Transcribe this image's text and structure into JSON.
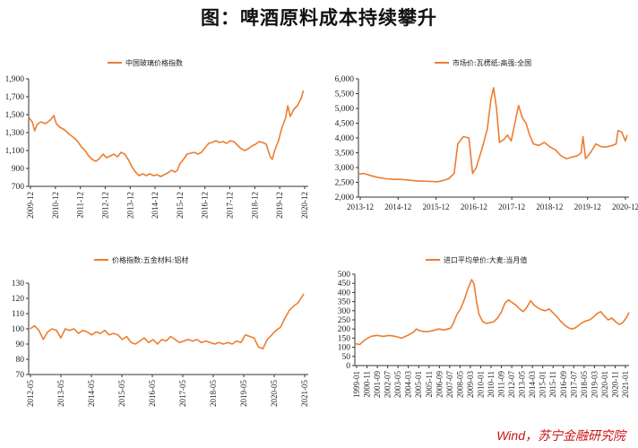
{
  "title": "图：啤酒原料成本持续攀升",
  "source": "Wind，苏宁金融研究院",
  "colors": {
    "series": "#ED7D31"
  },
  "chart_data": [
    {
      "type": "line",
      "legend": "中国玻璃价格指数",
      "legend_position": "top",
      "grid": false,
      "x_ticks": [
        "2009-12",
        "2010-12",
        "2011-12",
        "2012-12",
        "2013-12",
        "2014-12",
        "2015-12",
        "2016-12",
        "2017-12",
        "2018-12",
        "2019-12",
        "2020-12"
      ],
      "x_range": [
        2009.8,
        2021.45
      ],
      "y_ticks": [
        "700",
        "900",
        "1,100",
        "1,300",
        "1,500",
        "1,700",
        "1,900"
      ],
      "ylim": [
        700,
        1900
      ],
      "x_rotate": true,
      "points": [
        [
          2009.8,
          1470
        ],
        [
          2009.95,
          1420
        ],
        [
          2010.05,
          1320
        ],
        [
          2010.15,
          1390
        ],
        [
          2010.3,
          1420
        ],
        [
          2010.5,
          1400
        ],
        [
          2010.7,
          1440
        ],
        [
          2010.85,
          1490
        ],
        [
          2010.95,
          1400
        ],
        [
          2011.1,
          1360
        ],
        [
          2011.3,
          1330
        ],
        [
          2011.5,
          1280
        ],
        [
          2011.7,
          1240
        ],
        [
          2011.85,
          1200
        ],
        [
          2012.0,
          1140
        ],
        [
          2012.15,
          1100
        ],
        [
          2012.3,
          1040
        ],
        [
          2012.45,
          1000
        ],
        [
          2012.6,
          980
        ],
        [
          2012.75,
          1010
        ],
        [
          2012.9,
          1060
        ],
        [
          2013.05,
          1020
        ],
        [
          2013.2,
          1040
        ],
        [
          2013.35,
          1060
        ],
        [
          2013.5,
          1030
        ],
        [
          2013.65,
          1080
        ],
        [
          2013.8,
          1060
        ],
        [
          2013.95,
          1000
        ],
        [
          2014.1,
          920
        ],
        [
          2014.25,
          860
        ],
        [
          2014.4,
          820
        ],
        [
          2014.55,
          840
        ],
        [
          2014.7,
          820
        ],
        [
          2014.85,
          840
        ],
        [
          2015.0,
          820
        ],
        [
          2015.15,
          830
        ],
        [
          2015.3,
          810
        ],
        [
          2015.45,
          830
        ],
        [
          2015.6,
          850
        ],
        [
          2015.75,
          880
        ],
        [
          2015.9,
          860
        ],
        [
          2016.0,
          880
        ],
        [
          2016.1,
          950
        ],
        [
          2016.25,
          1000
        ],
        [
          2016.4,
          1060
        ],
        [
          2016.55,
          1070
        ],
        [
          2016.7,
          1080
        ],
        [
          2016.85,
          1060
        ],
        [
          2017.0,
          1080
        ],
        [
          2017.15,
          1130
        ],
        [
          2017.3,
          1180
        ],
        [
          2017.45,
          1190
        ],
        [
          2017.6,
          1210
        ],
        [
          2017.75,
          1190
        ],
        [
          2017.9,
          1200
        ],
        [
          2018.05,
          1180
        ],
        [
          2018.2,
          1210
        ],
        [
          2018.35,
          1200
        ],
        [
          2018.5,
          1160
        ],
        [
          2018.65,
          1120
        ],
        [
          2018.8,
          1100
        ],
        [
          2018.95,
          1120
        ],
        [
          2019.1,
          1150
        ],
        [
          2019.25,
          1170
        ],
        [
          2019.4,
          1200
        ],
        [
          2019.55,
          1190
        ],
        [
          2019.7,
          1170
        ],
        [
          2019.85,
          1040
        ],
        [
          2019.95,
          1000
        ],
        [
          2020.05,
          1100
        ],
        [
          2020.2,
          1200
        ],
        [
          2020.35,
          1350
        ],
        [
          2020.5,
          1460
        ],
        [
          2020.6,
          1600
        ],
        [
          2020.7,
          1480
        ],
        [
          2020.85,
          1560
        ],
        [
          2021.0,
          1600
        ],
        [
          2021.15,
          1680
        ],
        [
          2021.25,
          1770
        ]
      ]
    },
    {
      "type": "line",
      "legend": "市场价:瓦楞纸:高强:全国",
      "legend_position": "top",
      "grid": false,
      "x_ticks": [
        "2013-12",
        "2014-12",
        "2015-12",
        "2016-12",
        "2017-12",
        "2018-12",
        "2019-12",
        "2020-12"
      ],
      "x_range": [
        2013.95,
        2021.3
      ],
      "y_ticks": [
        "2,000",
        "2,500",
        "3,000",
        "3,500",
        "4,000",
        "4,500",
        "5,000",
        "5,500",
        "6,000"
      ],
      "ylim": [
        2000,
        6000
      ],
      "x_rotate": false,
      "points": [
        [
          2013.95,
          2780
        ],
        [
          2014.1,
          2800
        ],
        [
          2014.3,
          2720
        ],
        [
          2014.5,
          2660
        ],
        [
          2014.7,
          2620
        ],
        [
          2014.9,
          2600
        ],
        [
          2015.1,
          2600
        ],
        [
          2015.3,
          2580
        ],
        [
          2015.5,
          2550
        ],
        [
          2015.7,
          2540
        ],
        [
          2015.9,
          2530
        ],
        [
          2016.1,
          2520
        ],
        [
          2016.25,
          2560
        ],
        [
          2016.4,
          2620
        ],
        [
          2016.55,
          2800
        ],
        [
          2016.65,
          3800
        ],
        [
          2016.8,
          4050
        ],
        [
          2016.95,
          4000
        ],
        [
          2017.05,
          2800
        ],
        [
          2017.15,
          3000
        ],
        [
          2017.3,
          3600
        ],
        [
          2017.45,
          4300
        ],
        [
          2017.55,
          5300
        ],
        [
          2017.62,
          5700
        ],
        [
          2017.7,
          5000
        ],
        [
          2017.78,
          3850
        ],
        [
          2017.9,
          3950
        ],
        [
          2018.0,
          4100
        ],
        [
          2018.1,
          3900
        ],
        [
          2018.2,
          4500
        ],
        [
          2018.3,
          5100
        ],
        [
          2018.4,
          4700
        ],
        [
          2018.5,
          4500
        ],
        [
          2018.6,
          4100
        ],
        [
          2018.7,
          3800
        ],
        [
          2018.85,
          3750
        ],
        [
          2019.0,
          3850
        ],
        [
          2019.15,
          3700
        ],
        [
          2019.3,
          3600
        ],
        [
          2019.45,
          3400
        ],
        [
          2019.6,
          3300
        ],
        [
          2019.75,
          3350
        ],
        [
          2019.9,
          3400
        ],
        [
          2020.0,
          3500
        ],
        [
          2020.05,
          4050
        ],
        [
          2020.12,
          3300
        ],
        [
          2020.25,
          3500
        ],
        [
          2020.4,
          3800
        ],
        [
          2020.55,
          3700
        ],
        [
          2020.7,
          3700
        ],
        [
          2020.85,
          3750
        ],
        [
          2020.95,
          3800
        ],
        [
          2021.0,
          4250
        ],
        [
          2021.1,
          4200
        ],
        [
          2021.2,
          3900
        ],
        [
          2021.25,
          4100
        ]
      ]
    },
    {
      "type": "line",
      "legend": "价格指数:五金材料:铝材",
      "legend_position": "top",
      "grid": false,
      "x_ticks": [
        "2012-05",
        "2013-05",
        "2014-05",
        "2015-05",
        "2016-05",
        "2017-05",
        "2018-05",
        "2019-05",
        "2020-05",
        "2021-05"
      ],
      "x_range": [
        2012.3,
        2021.85
      ],
      "y_ticks": [
        "70",
        "80",
        "90",
        "100",
        "110",
        "120",
        "130"
      ],
      "ylim": [
        70,
        130
      ],
      "x_rotate": true,
      "points": [
        [
          2012.35,
          100
        ],
        [
          2012.5,
          102
        ],
        [
          2012.65,
          99
        ],
        [
          2012.8,
          93
        ],
        [
          2012.95,
          98
        ],
        [
          2013.1,
          100
        ],
        [
          2013.25,
          99
        ],
        [
          2013.4,
          94
        ],
        [
          2013.55,
          100
        ],
        [
          2013.7,
          99
        ],
        [
          2013.85,
          100
        ],
        [
          2014.0,
          97
        ],
        [
          2014.15,
          99
        ],
        [
          2014.3,
          98
        ],
        [
          2014.45,
          96
        ],
        [
          2014.6,
          98
        ],
        [
          2014.75,
          97
        ],
        [
          2014.9,
          99
        ],
        [
          2015.05,
          96
        ],
        [
          2015.2,
          97
        ],
        [
          2015.35,
          96
        ],
        [
          2015.5,
          93
        ],
        [
          2015.65,
          95
        ],
        [
          2015.8,
          91
        ],
        [
          2015.95,
          90
        ],
        [
          2016.1,
          92
        ],
        [
          2016.25,
          94
        ],
        [
          2016.4,
          91
        ],
        [
          2016.55,
          93
        ],
        [
          2016.7,
          90
        ],
        [
          2016.85,
          93
        ],
        [
          2017.0,
          92
        ],
        [
          2017.15,
          95
        ],
        [
          2017.3,
          93
        ],
        [
          2017.45,
          91
        ],
        [
          2017.6,
          92
        ],
        [
          2017.75,
          93
        ],
        [
          2017.9,
          92
        ],
        [
          2018.05,
          93
        ],
        [
          2018.2,
          91
        ],
        [
          2018.35,
          92
        ],
        [
          2018.5,
          91
        ],
        [
          2018.65,
          90
        ],
        [
          2018.8,
          91
        ],
        [
          2018.95,
          90
        ],
        [
          2019.1,
          91
        ],
        [
          2019.25,
          90
        ],
        [
          2019.4,
          92
        ],
        [
          2019.55,
          91
        ],
        [
          2019.7,
          96
        ],
        [
          2019.85,
          95
        ],
        [
          2020.0,
          94
        ],
        [
          2020.15,
          88
        ],
        [
          2020.3,
          87
        ],
        [
          2020.45,
          93
        ],
        [
          2020.6,
          96
        ],
        [
          2020.75,
          99
        ],
        [
          2020.9,
          101
        ],
        [
          2021.05,
          107
        ],
        [
          2021.2,
          112
        ],
        [
          2021.35,
          115
        ],
        [
          2021.5,
          117
        ],
        [
          2021.6,
          120
        ],
        [
          2021.7,
          123
        ]
      ]
    },
    {
      "type": "line",
      "legend": "进口平均单价:大麦:当月值",
      "legend_position": "top",
      "grid": false,
      "x_ticks": [
        "1999-01",
        "2000-11",
        "2001-09",
        "2002-07",
        "2003-05",
        "2004-03",
        "2005-01",
        "2005-11",
        "2006-09",
        "2007-07",
        "2008-05",
        "2009-03",
        "2010-01",
        "2010-11",
        "2011-09",
        "2012-07",
        "2013-05",
        "2014-03",
        "2015-01",
        "2015-11",
        "2016-09",
        "2017-07",
        "2018-05",
        "2019-03",
        "2020-01",
        "2020-11",
        "2021-01"
      ],
      "x_range": [
        1999.0,
        2021.3
      ],
      "y_ticks": [
        "0",
        "50",
        "100",
        "150",
        "200",
        "250",
        "300",
        "350",
        "400",
        "450",
        "500"
      ],
      "ylim": [
        0,
        500
      ],
      "x_rotate": true,
      "points": [
        [
          1999.0,
          120
        ],
        [
          1999.4,
          115
        ],
        [
          1999.8,
          140
        ],
        [
          2000.3,
          160
        ],
        [
          2000.8,
          165
        ],
        [
          2001.3,
          160
        ],
        [
          2001.8,
          165
        ],
        [
          2002.3,
          160
        ],
        [
          2002.8,
          150
        ],
        [
          2003.3,
          165
        ],
        [
          2003.8,
          185
        ],
        [
          2004.0,
          200
        ],
        [
          2004.3,
          190
        ],
        [
          2004.8,
          185
        ],
        [
          2005.3,
          190
        ],
        [
          2005.8,
          200
        ],
        [
          2006.3,
          195
        ],
        [
          2006.8,
          205
        ],
        [
          2007.0,
          230
        ],
        [
          2007.3,
          280
        ],
        [
          2007.6,
          310
        ],
        [
          2007.9,
          360
        ],
        [
          2008.2,
          420
        ],
        [
          2008.5,
          470
        ],
        [
          2008.7,
          445
        ],
        [
          2008.9,
          350
        ],
        [
          2009.1,
          280
        ],
        [
          2009.4,
          240
        ],
        [
          2009.7,
          230
        ],
        [
          2010.0,
          235
        ],
        [
          2010.3,
          240
        ],
        [
          2010.6,
          260
        ],
        [
          2010.9,
          290
        ],
        [
          2011.2,
          340
        ],
        [
          2011.5,
          360
        ],
        [
          2011.8,
          345
        ],
        [
          2012.1,
          330
        ],
        [
          2012.4,
          310
        ],
        [
          2012.7,
          295
        ],
        [
          2013.0,
          320
        ],
        [
          2013.3,
          355
        ],
        [
          2013.6,
          330
        ],
        [
          2013.9,
          315
        ],
        [
          2014.2,
          305
        ],
        [
          2014.5,
          300
        ],
        [
          2014.8,
          310
        ],
        [
          2015.1,
          290
        ],
        [
          2015.4,
          270
        ],
        [
          2015.7,
          245
        ],
        [
          2016.0,
          225
        ],
        [
          2016.3,
          210
        ],
        [
          2016.6,
          200
        ],
        [
          2016.9,
          205
        ],
        [
          2017.2,
          220
        ],
        [
          2017.5,
          235
        ],
        [
          2017.8,
          245
        ],
        [
          2018.1,
          250
        ],
        [
          2018.4,
          265
        ],
        [
          2018.7,
          285
        ],
        [
          2019.0,
          295
        ],
        [
          2019.3,
          270
        ],
        [
          2019.6,
          250
        ],
        [
          2019.9,
          260
        ],
        [
          2020.2,
          240
        ],
        [
          2020.5,
          225
        ],
        [
          2020.8,
          235
        ],
        [
          2021.1,
          265
        ],
        [
          2021.3,
          290
        ]
      ]
    }
  ]
}
